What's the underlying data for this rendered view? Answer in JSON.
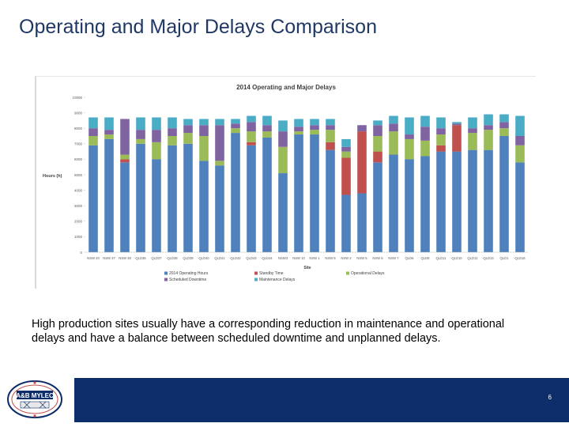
{
  "slide": {
    "title": "Operating and Major Delays Comparison",
    "caption": "High production sites usually have a corresponding reduction in maintenance and operational delays and have a balance between scheduled downtime and unplanned delays.",
    "page_number": "6",
    "logo_text": "A&B MYLEC"
  },
  "colors": {
    "title": "#1f3864",
    "footer": "#0d2d6b",
    "operating": "#4f81bd",
    "standby": "#c0504d",
    "operational": "#9bbb59",
    "scheduled": "#8064a2",
    "maintenance": "#4bacc6"
  },
  "chart_data": {
    "type": "bar",
    "stacked": true,
    "title": "2014 Operating and Major Delays",
    "xlabel": "Site",
    "ylabel": "Hours (h)",
    "ylim": [
      0,
      10000
    ],
    "yticks": [
      "0",
      "1000",
      "2000",
      "3000",
      "4000",
      "5000",
      "6000",
      "7000",
      "8000",
      "9000",
      "10000"
    ],
    "grid": false,
    "legend_position": "bottom",
    "categories": [
      "NSW 20",
      "NSW 37",
      "NSW 38",
      "QLD36",
      "QLD37",
      "QLD38",
      "QLD39",
      "QLD40",
      "QLD41",
      "QLD42",
      "QLD43",
      "QLD44",
      "NSW3",
      "NSW 10",
      "NSW 1",
      "NSW 8",
      "NSW 2",
      "NSW 5",
      "NSW 6",
      "NSW 7",
      "QLD6",
      "QLD8",
      "QLD11",
      "QLD10",
      "QLD12",
      "QLD13",
      "QLD1",
      "QLD16"
    ],
    "series": [
      {
        "name": "2014 Operating Hours",
        "color": "#4f81bd",
        "values": [
          6900,
          7300,
          5800,
          7000,
          6000,
          6900,
          7000,
          5900,
          5600,
          7700,
          6900,
          7400,
          5100,
          7600,
          7600,
          6600,
          3700,
          3800,
          5800,
          6300,
          6000,
          6200,
          6500,
          6500,
          6600,
          6600,
          7500,
          5800
        ]
      },
      {
        "name": "Standby Time",
        "color": "#c0504d",
        "values": [
          0,
          0,
          200,
          0,
          0,
          0,
          0,
          0,
          0,
          0,
          200,
          0,
          0,
          0,
          0,
          500,
          2400,
          4000,
          700,
          0,
          0,
          0,
          400,
          1700,
          0,
          0,
          0,
          0
        ]
      },
      {
        "name": "Operational Delays",
        "color": "#9bbb59",
        "values": [
          600,
          300,
          300,
          300,
          1100,
          600,
          700,
          1600,
          300,
          300,
          700,
          400,
          1700,
          200,
          300,
          800,
          400,
          0,
          1000,
          1500,
          1300,
          1000,
          700,
          0,
          1100,
          1300,
          500,
          1100
        ]
      },
      {
        "name": "Scheduled Downtime",
        "color": "#8064a2",
        "values": [
          500,
          300,
          2300,
          600,
          800,
          500,
          500,
          700,
          2300,
          300,
          600,
          400,
          1000,
          300,
          300,
          300,
          300,
          400,
          700,
          500,
          300,
          900,
          400,
          100,
          300,
          300,
          400,
          600
        ]
      },
      {
        "name": "Maintenance Delays",
        "color": "#4bacc6",
        "values": [
          700,
          800,
          0,
          800,
          800,
          700,
          400,
          400,
          400,
          300,
          400,
          600,
          700,
          500,
          400,
          400,
          500,
          0,
          300,
          500,
          1100,
          700,
          700,
          100,
          700,
          700,
          500,
          1300
        ]
      }
    ]
  }
}
